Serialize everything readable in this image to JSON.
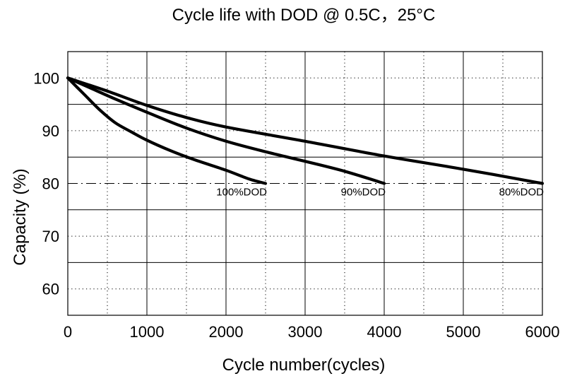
{
  "chart_data": {
    "type": "line",
    "title": "Cycle life with DOD @ 0.5C，25°C",
    "xlabel": "Cycle number(cycles)",
    "ylabel": "Capacity (%)",
    "xlim": [
      0,
      6000
    ],
    "ylim": [
      55,
      105
    ],
    "x_ticks": [
      0,
      1000,
      2000,
      3000,
      4000,
      5000,
      6000
    ],
    "y_ticks": [
      60,
      70,
      80,
      90,
      100
    ],
    "x_tick_labels": [
      "0",
      "1000",
      "2000",
      "3000",
      "4000",
      "5000",
      "6000"
    ],
    "y_tick_labels": [
      "60",
      "70",
      "80",
      "90",
      "100"
    ],
    "x_minor_grid": [
      500,
      1500,
      2500,
      3500,
      4500,
      5500
    ],
    "y_minor_grid": [
      65,
      75,
      85,
      95
    ],
    "reference_line": {
      "y": 80,
      "style": "dash-dot"
    },
    "grid": true,
    "series": [
      {
        "name": "100%DOD",
        "label": "100%DOD",
        "points": [
          [
            0,
            100
          ],
          [
            200,
            97
          ],
          [
            400,
            94
          ],
          [
            600,
            91.5
          ],
          [
            800,
            89.8
          ],
          [
            1000,
            88.2
          ],
          [
            1300,
            86.2
          ],
          [
            1600,
            84.5
          ],
          [
            2000,
            82.5
          ],
          [
            2300,
            80.8
          ],
          [
            2500,
            80
          ]
        ]
      },
      {
        "name": "90%DOD",
        "label": "90%DOD",
        "points": [
          [
            0,
            100
          ],
          [
            300,
            98
          ],
          [
            600,
            96
          ],
          [
            1000,
            93.5
          ],
          [
            1500,
            90.5
          ],
          [
            2000,
            88
          ],
          [
            2500,
            86
          ],
          [
            3000,
            84.2
          ],
          [
            3500,
            82.3
          ],
          [
            4000,
            80
          ]
        ]
      },
      {
        "name": "80%DOD",
        "label": "80%DOD",
        "points": [
          [
            0,
            100
          ],
          [
            500,
            97.5
          ],
          [
            1000,
            94.8
          ],
          [
            1500,
            92.5
          ],
          [
            2000,
            90.7
          ],
          [
            3000,
            88
          ],
          [
            4000,
            85.2
          ],
          [
            5000,
            82.7
          ],
          [
            6000,
            80
          ]
        ]
      }
    ]
  }
}
